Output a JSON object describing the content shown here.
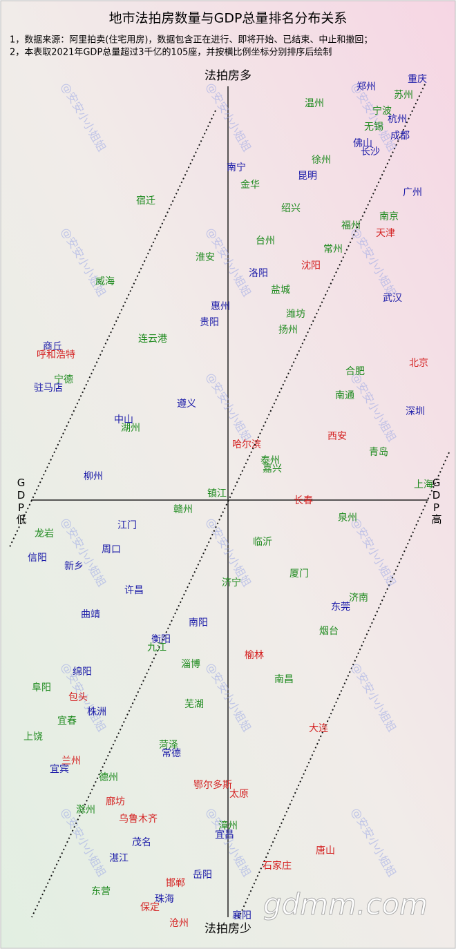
{
  "title": "地市法拍房数量与GDP总量排名分布关系",
  "notes": [
    "1，数据来源：阿里拍卖(住宅用房)，数据包含正在进行、即将开始、已结束、中止和撤回；",
    "2，本表取2021年GDP总量超过3千亿的105座，并按横比例坐标分别排序后绘制"
  ],
  "axis": {
    "top": "法拍房多",
    "bottom": "法拍房少",
    "left": "GDP低",
    "right": "GDP高"
  },
  "watermark": "@安安小小姐姐",
  "site": "gdmm.com",
  "cities": [
    {
      "name": "重庆",
      "color": "#1a1aa8"
    },
    {
      "name": "郑州",
      "color": "#1a1aa8"
    },
    {
      "name": "苏州",
      "color": "#1e8a1e"
    },
    {
      "name": "温州",
      "color": "#1e8a1e"
    },
    {
      "name": "宁波",
      "color": "#1e8a1e"
    },
    {
      "name": "杭州",
      "color": "#1a1aa8"
    },
    {
      "name": "无锡",
      "color": "#1e8a1e"
    },
    {
      "name": "佛山",
      "color": "#1a1aa8"
    },
    {
      "name": "成都",
      "color": "#1a1aa8"
    },
    {
      "name": "长沙",
      "color": "#1a1aa8"
    },
    {
      "name": "徐州",
      "color": "#1e8a1e"
    },
    {
      "name": "南宁",
      "color": "#1a1aa8"
    },
    {
      "name": "昆明",
      "color": "#1a1aa8"
    },
    {
      "name": "金华",
      "color": "#1e8a1e"
    },
    {
      "name": "广州",
      "color": "#1a1aa8"
    },
    {
      "name": "宿迁",
      "color": "#1e8a1e"
    },
    {
      "name": "绍兴",
      "color": "#1e8a1e"
    },
    {
      "name": "南京",
      "color": "#1e8a1e"
    },
    {
      "name": "福州",
      "color": "#1e8a1e"
    },
    {
      "name": "天津",
      "color": "#d42020"
    },
    {
      "name": "台州",
      "color": "#1e8a1e"
    },
    {
      "name": "常州",
      "color": "#1e8a1e"
    },
    {
      "name": "淮安",
      "color": "#1e8a1e"
    },
    {
      "name": "沈阳",
      "color": "#d42020"
    },
    {
      "name": "洛阳",
      "color": "#1a1aa8"
    },
    {
      "name": "威海",
      "color": "#1e8a1e"
    },
    {
      "name": "盐城",
      "color": "#1e8a1e"
    },
    {
      "name": "武汉",
      "color": "#1a1aa8"
    },
    {
      "name": "惠州",
      "color": "#1a1aa8"
    },
    {
      "name": "潍坊",
      "color": "#1e8a1e"
    },
    {
      "name": "贵阳",
      "color": "#1a1aa8"
    },
    {
      "name": "扬州",
      "color": "#1e8a1e"
    },
    {
      "name": "连云港",
      "color": "#1e8a1e"
    },
    {
      "name": "商丘",
      "color": "#1a1aa8"
    },
    {
      "name": "呼和浩特",
      "color": "#d42020"
    },
    {
      "name": "北京",
      "color": "#d42020"
    },
    {
      "name": "合肥",
      "color": "#1e8a1e"
    },
    {
      "name": "宁德",
      "color": "#1e8a1e"
    },
    {
      "name": "驻马店",
      "color": "#1a1aa8"
    },
    {
      "name": "南通",
      "color": "#1e8a1e"
    },
    {
      "name": "遵义",
      "color": "#1a1aa8"
    },
    {
      "name": "深圳",
      "color": "#1a1aa8"
    },
    {
      "name": "中山",
      "color": "#1a1aa8"
    },
    {
      "name": "湖州",
      "color": "#1e8a1e"
    },
    {
      "name": "西安",
      "color": "#d42020"
    },
    {
      "name": "哈尔滨",
      "color": "#d42020"
    },
    {
      "name": "青岛",
      "color": "#1e8a1e"
    },
    {
      "name": "泰州",
      "color": "#1e8a1e"
    },
    {
      "name": "嘉兴",
      "color": "#1e8a1e"
    },
    {
      "name": "柳州",
      "color": "#1a1aa8"
    },
    {
      "name": "上海",
      "color": "#1e8a1e"
    },
    {
      "name": "镇江",
      "color": "#1e8a1e"
    },
    {
      "name": "长春",
      "color": "#d42020"
    },
    {
      "name": "赣州",
      "color": "#1e8a1e"
    },
    {
      "name": "泉州",
      "color": "#1e8a1e"
    },
    {
      "name": "江门",
      "color": "#1a1aa8"
    },
    {
      "name": "龙岩",
      "color": "#1e8a1e"
    },
    {
      "name": "临沂",
      "color": "#1e8a1e"
    },
    {
      "name": "周口",
      "color": "#1a1aa8"
    },
    {
      "name": "信阳",
      "color": "#1a1aa8"
    },
    {
      "name": "新乡",
      "color": "#1a1aa8"
    },
    {
      "name": "厦门",
      "color": "#1e8a1e"
    },
    {
      "name": "济宁",
      "color": "#1e8a1e"
    },
    {
      "name": "许昌",
      "color": "#1a1aa8"
    },
    {
      "name": "济南",
      "color": "#1e8a1e"
    },
    {
      "name": "东莞",
      "color": "#1a1aa8"
    },
    {
      "name": "曲靖",
      "color": "#1a1aa8"
    },
    {
      "name": "南阳",
      "color": "#1a1aa8"
    },
    {
      "name": "烟台",
      "color": "#1e8a1e"
    },
    {
      "name": "衡阳",
      "color": "#1a1aa8"
    },
    {
      "name": "九江",
      "color": "#1e8a1e"
    },
    {
      "name": "榆林",
      "color": "#d42020"
    },
    {
      "name": "绵阳",
      "color": "#1a1aa8"
    },
    {
      "name": "淄博",
      "color": "#1e8a1e"
    },
    {
      "name": "南昌",
      "color": "#1e8a1e"
    },
    {
      "name": "阜阳",
      "color": "#1e8a1e"
    },
    {
      "name": "包头",
      "color": "#d42020"
    },
    {
      "name": "芜湖",
      "color": "#1e8a1e"
    },
    {
      "name": "株洲",
      "color": "#1a1aa8"
    },
    {
      "name": "宜春",
      "color": "#1e8a1e"
    },
    {
      "name": "大连",
      "color": "#d42020"
    },
    {
      "name": "上饶",
      "color": "#1e8a1e"
    },
    {
      "name": "菏泽",
      "color": "#1e8a1e"
    },
    {
      "name": "常德",
      "color": "#1a1aa8"
    },
    {
      "name": "兰州",
      "color": "#d42020"
    },
    {
      "name": "宜宾",
      "color": "#1a1aa8"
    },
    {
      "name": "德州",
      "color": "#1e8a1e"
    },
    {
      "name": "鄂尔多斯",
      "color": "#d42020"
    },
    {
      "name": "太原",
      "color": "#d42020"
    },
    {
      "name": "滁州",
      "color": "#1e8a1e"
    },
    {
      "name": "廊坊",
      "color": "#d42020"
    },
    {
      "name": "乌鲁木齐",
      "color": "#d42020"
    },
    {
      "name": "漳州",
      "color": "#1e8a1e"
    },
    {
      "name": "宜昌",
      "color": "#1a1aa8"
    },
    {
      "name": "茂名",
      "color": "#1a1aa8"
    },
    {
      "name": "唐山",
      "color": "#d42020"
    },
    {
      "name": "湛江",
      "color": "#1a1aa8"
    },
    {
      "name": "石家庄",
      "color": "#d42020"
    },
    {
      "name": "岳阳",
      "color": "#1a1aa8"
    },
    {
      "name": "邯郸",
      "color": "#d42020"
    },
    {
      "name": "东营",
      "color": "#1e8a1e"
    },
    {
      "name": "珠海",
      "color": "#1a1aa8"
    },
    {
      "name": "保定",
      "color": "#d42020"
    },
    {
      "name": "襄阳",
      "color": "#1a1aa8"
    },
    {
      "name": "沧州",
      "color": "#d42020"
    }
  ]
}
